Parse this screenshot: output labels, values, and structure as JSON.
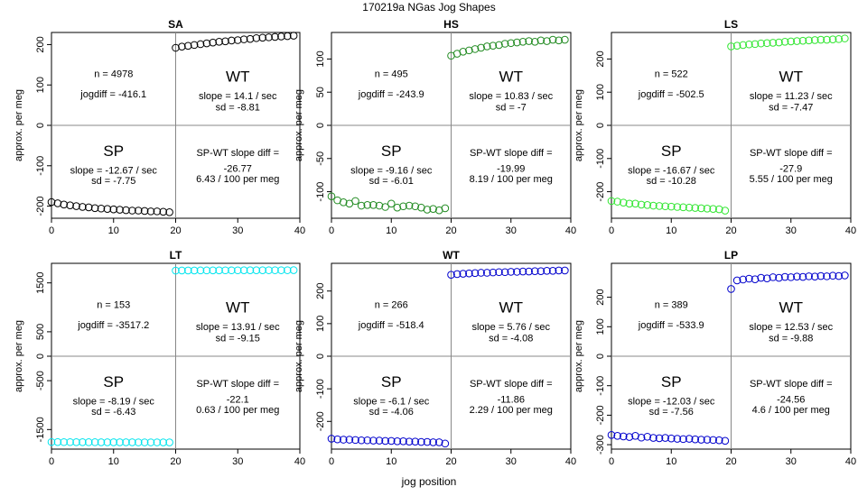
{
  "page": {
    "title": "170219a   NGas Jog Shapes",
    "xlabel": "jog position",
    "ylabel": "approx. per meg"
  },
  "chart_data": [
    {
      "type": "scatter",
      "title": "SA",
      "color": "#000000",
      "xlim": [
        0,
        40
      ],
      "ylim": [
        -230,
        230
      ],
      "yticks": [
        -200,
        -100,
        0,
        100,
        200
      ],
      "xticks": [
        0,
        10,
        20,
        30,
        40
      ],
      "x": [
        0,
        1,
        2,
        3,
        4,
        5,
        6,
        7,
        8,
        9,
        10,
        11,
        12,
        13,
        14,
        15,
        16,
        17,
        18,
        19,
        20,
        21,
        22,
        23,
        24,
        25,
        26,
        27,
        28,
        29,
        30,
        31,
        32,
        33,
        34,
        35,
        36,
        37,
        38,
        39
      ],
      "y": [
        -190,
        -193,
        -196,
        -198,
        -200,
        -202,
        -203,
        -205,
        -206,
        -207,
        -208,
        -209,
        -210,
        -211,
        -211,
        -212,
        -213,
        -213,
        -214,
        -215,
        192,
        195,
        197,
        199,
        201,
        203,
        205,
        207,
        208,
        210,
        211,
        213,
        214,
        216,
        217,
        218,
        219,
        220,
        221,
        222
      ],
      "annotations": {
        "n": "n = 4978",
        "jogdiff": "jogdiff = -416.1",
        "wt_label": "WT",
        "wt_slope": "slope = 14.1 / sec",
        "wt_sd": "sd = -8.81",
        "sp_label": "SP",
        "sp_slope": "slope = -12.67 / sec",
        "sp_sd": "sd = -7.75",
        "diff_label": "SP-WT slope diff =",
        "diff_value": "-26.77",
        "diff_norm": "6.43 / 100 per meg"
      }
    },
    {
      "type": "scatter",
      "title": "HS",
      "color": "#228B22",
      "xlim": [
        0,
        40
      ],
      "ylim": [
        -140,
        140
      ],
      "yticks": [
        -100,
        -50,
        0,
        50,
        100
      ],
      "xticks": [
        0,
        10,
        20,
        30,
        40
      ],
      "x": [
        0,
        1,
        2,
        3,
        4,
        5,
        6,
        7,
        8,
        9,
        10,
        11,
        12,
        13,
        14,
        15,
        16,
        17,
        18,
        19,
        20,
        21,
        22,
        23,
        24,
        25,
        26,
        27,
        28,
        29,
        30,
        31,
        32,
        33,
        34,
        35,
        36,
        37,
        38,
        39
      ],
      "y": [
        -107,
        -113,
        -116,
        -118,
        -114,
        -121,
        -120,
        -120,
        -121,
        -123,
        -118,
        -124,
        -122,
        -121,
        -122,
        -124,
        -127,
        -126,
        -128,
        -125,
        105,
        108,
        111,
        113,
        115,
        117,
        119,
        120,
        121,
        123,
        124,
        125,
        126,
        127,
        126,
        128,
        127,
        129,
        128,
        129
      ],
      "annotations": {
        "n": "n = 495",
        "jogdiff": "jogdiff = -243.9",
        "wt_label": "WT",
        "wt_slope": "slope = 10.83 / sec",
        "wt_sd": "sd = -7",
        "sp_label": "SP",
        "sp_slope": "slope = -9.16 / sec",
        "sp_sd": "sd = -6.01",
        "diff_label": "SP-WT slope diff =",
        "diff_value": "-19.99",
        "diff_norm": "8.19 / 100 per meg"
      }
    },
    {
      "type": "scatter",
      "title": "LS",
      "color": "#32E632",
      "xlim": [
        0,
        40
      ],
      "ylim": [
        -280,
        280
      ],
      "yticks": [
        -200,
        -100,
        0,
        100,
        200
      ],
      "xticks": [
        0,
        10,
        20,
        30,
        40
      ],
      "x": [
        0,
        1,
        2,
        3,
        4,
        5,
        6,
        7,
        8,
        9,
        10,
        11,
        12,
        13,
        14,
        15,
        16,
        17,
        18,
        19,
        20,
        21,
        22,
        23,
        24,
        25,
        26,
        27,
        28,
        29,
        30,
        31,
        32,
        33,
        34,
        35,
        36,
        37,
        38,
        39
      ],
      "y": [
        -228,
        -230,
        -233,
        -236,
        -236,
        -239,
        -240,
        -242,
        -243,
        -244,
        -245,
        -246,
        -247,
        -248,
        -249,
        -250,
        -251,
        -252,
        -253,
        -257,
        238,
        240,
        242,
        244,
        245,
        247,
        248,
        249,
        250,
        252,
        253,
        254,
        255,
        256,
        257,
        258,
        258,
        259,
        260,
        262
      ],
      "annotations": {
        "n": "n = 522",
        "jogdiff": "jogdiff = -502.5",
        "wt_label": "WT",
        "wt_slope": "slope = 11.23 / sec",
        "wt_sd": "sd = -7.47",
        "sp_label": "SP",
        "sp_slope": "slope = -16.67 / sec",
        "sp_sd": "sd = -10.28",
        "diff_label": "SP-WT slope diff =",
        "diff_value": "-27.9",
        "diff_norm": "5.55 / 100 per meg"
      }
    },
    {
      "type": "scatter",
      "title": "LT",
      "color": "#00E5EE",
      "xlim": [
        0,
        40
      ],
      "ylim": [
        -1900,
        1900
      ],
      "yticks": [
        -1500,
        -500,
        0,
        500,
        1500
      ],
      "xticks": [
        0,
        10,
        20,
        30,
        40
      ],
      "x": [
        0,
        1,
        2,
        3,
        4,
        5,
        6,
        7,
        8,
        9,
        10,
        11,
        12,
        13,
        14,
        15,
        16,
        17,
        18,
        19,
        20,
        21,
        22,
        23,
        24,
        25,
        26,
        27,
        28,
        29,
        30,
        31,
        32,
        33,
        34,
        35,
        36,
        37,
        38,
        39
      ],
      "y": [
        -1755,
        -1756,
        -1757,
        -1757,
        -1758,
        -1758,
        -1759,
        -1759,
        -1760,
        -1760,
        -1760,
        -1761,
        -1761,
        -1761,
        -1762,
        -1762,
        -1762,
        -1762,
        -1763,
        -1763,
        1752,
        1753,
        1754,
        1754,
        1755,
        1755,
        1756,
        1756,
        1757,
        1757,
        1757,
        1758,
        1758,
        1758,
        1758,
        1759,
        1759,
        1759,
        1759,
        1760
      ],
      "annotations": {
        "n": "n = 153",
        "jogdiff": "jogdiff = -3517.2",
        "wt_label": "WT",
        "wt_slope": "slope = 13.91 / sec",
        "wt_sd": "sd = -9.15",
        "sp_label": "SP",
        "sp_slope": "slope = -8.19 / sec",
        "sp_sd": "sd = -6.43",
        "diff_label": "SP-WT slope diff =",
        "diff_value": "-22.1",
        "diff_norm": "0.63 / 100 per meg"
      }
    },
    {
      "type": "scatter",
      "title": "WT",
      "color": "#0000CD",
      "xlim": [
        0,
        40
      ],
      "ylim": [
        -285,
        285
      ],
      "yticks": [
        -200,
        -100,
        0,
        100,
        200
      ],
      "xticks": [
        0,
        10,
        20,
        30,
        40
      ],
      "x": [
        0,
        1,
        2,
        3,
        4,
        5,
        6,
        7,
        8,
        9,
        10,
        11,
        12,
        13,
        14,
        15,
        16,
        17,
        18,
        19,
        20,
        21,
        22,
        23,
        24,
        25,
        26,
        27,
        28,
        29,
        30,
        31,
        32,
        33,
        34,
        35,
        36,
        37,
        38,
        39
      ],
      "y": [
        -253,
        -255,
        -256,
        -256,
        -257,
        -258,
        -258,
        -259,
        -259,
        -260,
        -260,
        -261,
        -261,
        -262,
        -262,
        -263,
        -263,
        -264,
        -264,
        -268,
        250,
        252,
        253,
        254,
        255,
        256,
        256,
        257,
        258,
        258,
        259,
        259,
        260,
        260,
        261,
        261,
        262,
        262,
        263,
        263
      ],
      "annotations": {
        "n": "n = 266",
        "jogdiff": "jogdiff = -518.4",
        "wt_label": "WT",
        "wt_slope": "slope = 5.76 / sec",
        "wt_sd": "sd = -4.08",
        "sp_label": "SP",
        "sp_slope": "slope = -6.1 / sec",
        "sp_sd": "sd = -4.06",
        "diff_label": "SP-WT slope diff =",
        "diff_value": "-11.86",
        "diff_norm": "2.29 / 100 per meg"
      }
    },
    {
      "type": "scatter",
      "title": "LP",
      "color": "#0000CD",
      "xlim": [
        0,
        40
      ],
      "ylim": [
        -315,
        315
      ],
      "yticks": [
        -300,
        -200,
        -100,
        0,
        100,
        200
      ],
      "xticks": [
        0,
        10,
        20,
        30,
        40
      ],
      "x": [
        0,
        1,
        2,
        3,
        4,
        5,
        6,
        7,
        8,
        9,
        10,
        11,
        12,
        13,
        14,
        15,
        16,
        17,
        18,
        19,
        20,
        21,
        22,
        23,
        24,
        25,
        26,
        27,
        28,
        29,
        30,
        31,
        32,
        33,
        34,
        35,
        36,
        37,
        38,
        39
      ],
      "y": [
        -267,
        -270,
        -272,
        -274,
        -270,
        -276,
        -273,
        -277,
        -278,
        -277,
        -279,
        -280,
        -281,
        -280,
        -282,
        -283,
        -283,
        -284,
        -285,
        -287,
        228,
        257,
        260,
        263,
        261,
        266,
        264,
        268,
        266,
        269,
        268,
        270,
        269,
        271,
        270,
        272,
        271,
        273,
        272,
        274
      ],
      "annotations": {
        "n": "n = 389",
        "jogdiff": "jogdiff = -533.9",
        "wt_label": "WT",
        "wt_slope": "slope = 12.53 / sec",
        "wt_sd": "sd = -9.88",
        "sp_label": "SP",
        "sp_slope": "slope = -12.03 / sec",
        "sp_sd": "sd = -7.56",
        "diff_label": "SP-WT slope diff =",
        "diff_value": "-24.56",
        "diff_norm": "4.6 / 100 per meg"
      }
    }
  ]
}
